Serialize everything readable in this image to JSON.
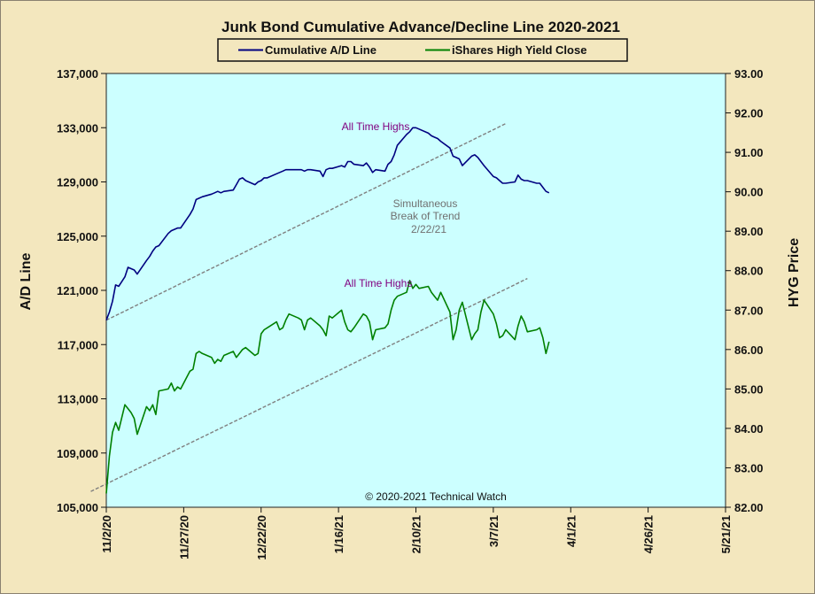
{
  "chart_data": {
    "type": "line",
    "title": "Junk Bond Cumulative  Advance/Decline  Line  2020-2021",
    "ylabel_left": "A/D Line",
    "ylabel_right": "HYG Price",
    "xlabel": "",
    "legend_placement": "top-center",
    "grid": false,
    "colors": {
      "plot_bg": "#ccffff",
      "page_bg": "#f3e7be",
      "ad": "#000080",
      "hyg": "#008000",
      "trend": "#7f7f7f",
      "ann_high": "#800080",
      "ann_trend": "#707070"
    },
    "x_ticks": [
      "11/2/20",
      "11/27/20",
      "12/22/20",
      "1/16/21",
      "2/10/21",
      "3/7/21",
      "4/1/21",
      "4/26/21",
      "5/21/21"
    ],
    "xlim": [
      "11/2/20",
      "5/21/21"
    ],
    "y_left_ticks": [
      "105,000",
      "109,000",
      "113,000",
      "117,000",
      "121,000",
      "125,000",
      "129,000",
      "133,000",
      "137,000"
    ],
    "y_left_lim": [
      105000,
      137000
    ],
    "y_right_ticks": [
      "82.00",
      "83.00",
      "84.00",
      "85.00",
      "86.00",
      "87.00",
      "88.00",
      "89.00",
      "90.00",
      "91.00",
      "92.00",
      "93.00"
    ],
    "y_right_lim": [
      82,
      93
    ],
    "series": [
      {
        "name": "Cumulative A/D Line",
        "axis": "left",
        "x": [
          0,
          1,
          2,
          3,
          4,
          6,
          7,
          8,
          9,
          10,
          13,
          14,
          15,
          16,
          17,
          20,
          21,
          22,
          23,
          24,
          27,
          28,
          29,
          30,
          31,
          34,
          35,
          36,
          37,
          38,
          41,
          42,
          43,
          44,
          45,
          48,
          49,
          50,
          51,
          52,
          55,
          56,
          57,
          58,
          59,
          62,
          63,
          64,
          65,
          66,
          69,
          70,
          71,
          72,
          73,
          76,
          77,
          78,
          79,
          80,
          83,
          84,
          85,
          86,
          87,
          90,
          91,
          92,
          93,
          94,
          97,
          98,
          99,
          100,
          101,
          104,
          105,
          106,
          107,
          108,
          111,
          112,
          113,
          114,
          115,
          118,
          119,
          120,
          121,
          122,
          125,
          126,
          127,
          128,
          129,
          132,
          133,
          134,
          135,
          136,
          139,
          140,
          141,
          142,
          143
        ],
        "y": [
          118800,
          119400,
          120200,
          121400,
          121300,
          122000,
          122700,
          122600,
          122500,
          122200,
          123200,
          123500,
          123900,
          124200,
          124300,
          125200,
          125400,
          125500,
          125600,
          125600,
          126600,
          127000,
          127700,
          127800,
          127900,
          128100,
          128200,
          128300,
          128200,
          128300,
          128400,
          128800,
          129200,
          129300,
          129100,
          128800,
          129000,
          129100,
          129300,
          129300,
          129600,
          129700,
          129800,
          129900,
          129900,
          129900,
          129900,
          129800,
          129900,
          129900,
          129800,
          129400,
          129900,
          130000,
          130000,
          130200,
          130100,
          130500,
          130500,
          130300,
          130200,
          130400,
          130100,
          129700,
          129900,
          129800,
          130300,
          130500,
          131000,
          131700,
          132500,
          132700,
          133000,
          133000,
          132900,
          132600,
          132400,
          132300,
          132200,
          132000,
          131500,
          130900,
          130800,
          130700,
          130200,
          130900,
          131000,
          130800,
          130500,
          130200,
          129400,
          129300,
          129100,
          128900,
          128900,
          129000,
          129500,
          129200,
          129100,
          129100,
          128900,
          128900,
          128600,
          128300,
          128200
        ]
      },
      {
        "name": "iShares High Yield Close",
        "axis": "right",
        "x": [
          0,
          1,
          2,
          3,
          4,
          6,
          7,
          8,
          9,
          10,
          13,
          14,
          15,
          16,
          17,
          20,
          21,
          22,
          23,
          24,
          27,
          28,
          29,
          30,
          31,
          34,
          35,
          36,
          37,
          38,
          41,
          42,
          43,
          44,
          45,
          48,
          49,
          50,
          51,
          52,
          55,
          56,
          57,
          58,
          59,
          62,
          63,
          64,
          65,
          66,
          69,
          70,
          71,
          72,
          73,
          76,
          77,
          78,
          79,
          80,
          83,
          84,
          85,
          86,
          87,
          90,
          91,
          92,
          93,
          94,
          97,
          98,
          99,
          100,
          101,
          104,
          105,
          106,
          107,
          108,
          111,
          112,
          113,
          114,
          115,
          118,
          119,
          120,
          121,
          122,
          125,
          126,
          127,
          128,
          129,
          132,
          133,
          134,
          135,
          136,
          139,
          140,
          141,
          142,
          143
        ],
        "y": [
          82.35,
          83.3,
          83.9,
          84.15,
          83.95,
          84.6,
          84.5,
          84.4,
          84.25,
          83.85,
          84.55,
          84.45,
          84.6,
          84.35,
          84.95,
          85.0,
          85.15,
          84.95,
          85.05,
          85.0,
          85.45,
          85.5,
          85.9,
          85.95,
          85.9,
          85.8,
          85.65,
          85.75,
          85.7,
          85.85,
          85.95,
          85.8,
          85.9,
          86.0,
          86.05,
          85.85,
          85.9,
          86.4,
          86.5,
          86.55,
          86.7,
          86.5,
          86.55,
          86.75,
          86.9,
          86.8,
          86.75,
          86.5,
          86.75,
          86.8,
          86.6,
          86.5,
          86.35,
          86.85,
          86.8,
          87.0,
          86.7,
          86.5,
          86.45,
          86.55,
          86.9,
          86.85,
          86.7,
          86.25,
          86.5,
          86.55,
          86.65,
          87.0,
          87.25,
          87.35,
          87.45,
          87.75,
          87.55,
          87.65,
          87.55,
          87.6,
          87.45,
          87.35,
          87.25,
          87.45,
          86.95,
          86.25,
          86.5,
          87.0,
          87.2,
          86.25,
          86.4,
          86.5,
          86.95,
          87.25,
          86.9,
          86.65,
          86.3,
          86.35,
          86.5,
          86.25,
          86.6,
          86.85,
          86.7,
          86.45,
          86.5,
          86.55,
          86.3,
          85.9,
          86.2
        ]
      }
    ],
    "annotations": [
      {
        "text": "All Time Highs",
        "target": "Cumulative A/D Line"
      },
      {
        "text": "All Time Highs",
        "target": "iShares High Yield Close"
      },
      {
        "text": "Simultaneous",
        "target": "trend-break"
      },
      {
        "text": "Break of Trend",
        "target": "trend-break"
      },
      {
        "text": "2/22/21",
        "target": "trend-break"
      },
      {
        "text": "© 2020-2021  Technical  Watch",
        "target": "copyright"
      }
    ],
    "trendlines": [
      {
        "axis": "left",
        "x": [
          0,
          129
        ],
        "y": [
          118800,
          133300
        ]
      },
      {
        "axis": "right",
        "x": [
          -5,
          136
        ],
        "y": [
          82.4,
          87.8
        ]
      }
    ]
  }
}
